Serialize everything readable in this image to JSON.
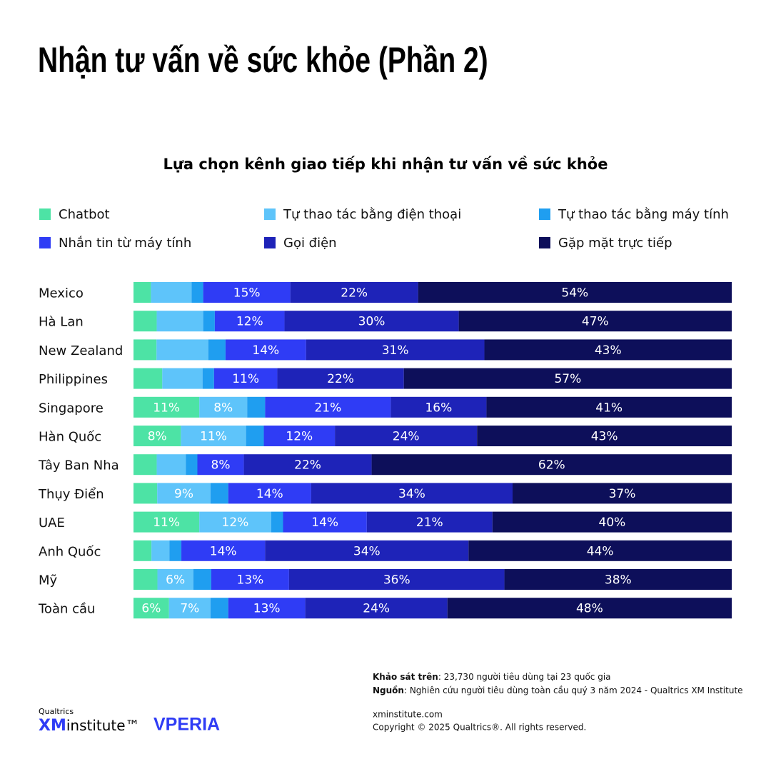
{
  "chart_data": {
    "type": "stacked-bar-horizontal",
    "title": "Nhận tư vấn về sức khỏe (Phần 2)",
    "subtitle": "Lựa chọn kênh giao tiếp khi nhận tư vấn về sức khỏe",
    "categories": [
      "Mexico",
      "Hà Lan",
      "New Zealand",
      "Philippines",
      "Singapore",
      "Hàn Quốc",
      "Tây Ban Nha",
      "Thụy Điển",
      "UAE",
      "Anh Quốc",
      "Mỹ",
      "Toàn cầu"
    ],
    "series": [
      {
        "name": "Chatbot",
        "color": "#4de3a5",
        "values": [
          3,
          4,
          4,
          5,
          11,
          8,
          4,
          4,
          11,
          3,
          4,
          6
        ],
        "value_labels": [
          null,
          null,
          null,
          null,
          "11%",
          "8%",
          null,
          null,
          "11%",
          null,
          null,
          "6%"
        ]
      },
      {
        "name": "Tự thao tác bằng điện thoại",
        "color": "#5ec4fa",
        "values": [
          7,
          8,
          9,
          7,
          8,
          11,
          5,
          9,
          12,
          3,
          6,
          7
        ],
        "value_labels": [
          null,
          null,
          null,
          null,
          "8%",
          "11%",
          null,
          "9%",
          "12%",
          null,
          "6%",
          "7%"
        ]
      },
      {
        "name": "Tự thao tác bằng máy tính",
        "color": "#1f9ef0",
        "values": [
          2,
          2,
          3,
          2,
          3,
          3,
          2,
          3,
          2,
          2,
          3,
          3
        ],
        "value_labels": [
          null,
          null,
          null,
          null,
          null,
          null,
          null,
          null,
          null,
          null,
          null,
          null
        ]
      },
      {
        "name": "Nhắn tin từ máy tính",
        "color": "#2f3cf5",
        "values": [
          15,
          12,
          14,
          11,
          21,
          12,
          8,
          14,
          14,
          14,
          13,
          13
        ],
        "value_labels": [
          "15%",
          "12%",
          "14%",
          "11%",
          "21%",
          "12%",
          "8%",
          "14%",
          "14%",
          "14%",
          "13%",
          "13%"
        ]
      },
      {
        "name": "Gọi điện",
        "color": "#1e23b8",
        "values": [
          22,
          30,
          31,
          22,
          16,
          24,
          22,
          34,
          21,
          34,
          36,
          24
        ],
        "value_labels": [
          "22%",
          "30%",
          "31%",
          "22%",
          "16%",
          "24%",
          "22%",
          "34%",
          "21%",
          "34%",
          "36%",
          "24%"
        ]
      },
      {
        "name": "Gặp mặt trực tiếp",
        "color": "#0d0f5a",
        "values": [
          54,
          47,
          43,
          57,
          41,
          43,
          62,
          37,
          40,
          44,
          38,
          48
        ],
        "value_labels": [
          "54%",
          "47%",
          "43%",
          "57%",
          "41%",
          "43%",
          "62%",
          "37%",
          "40%",
          "44%",
          "38%",
          "48%"
        ]
      }
    ]
  },
  "footer": {
    "survey_label": "Khảo sát trên",
    "survey_text": ": 23,730 người tiêu dùng tại 23 quốc gia",
    "source_label": "Nguồn",
    "source_text": ": Nghiên cứu người tiêu dùng toàn cầu quý 3 năm 2024 - Qualtrics XM Institute",
    "url": "xminstitute.com",
    "copyright": "Copyright © 2025 Qualtrics®. All rights reserved.",
    "logo_top": "Qualtrics",
    "logo_xm": "XM",
    "logo_institute": "institute™",
    "logo_partner": "VPERIA"
  }
}
